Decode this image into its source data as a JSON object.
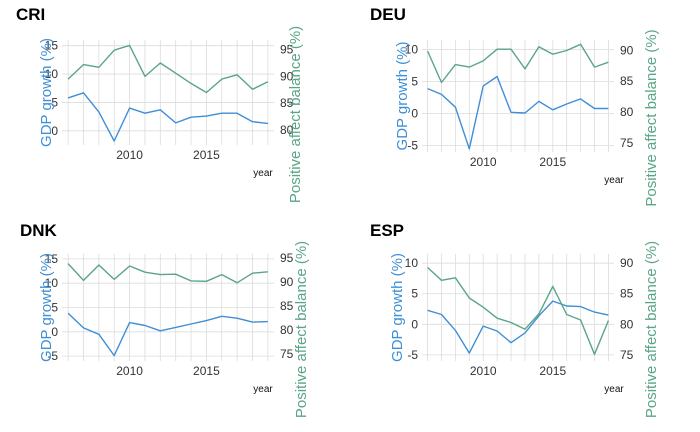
{
  "colors": {
    "left_axis": "#3f8fd6",
    "right_axis": "#5aa586",
    "grid": "#dcdcdc"
  },
  "chart_data": [
    {
      "type": "line",
      "title": "CRI",
      "xlabel": "year",
      "ylabel_left": "GDP growth (%)",
      "ylabel_right": "Positive affect balance (%)",
      "x_ticks": [
        2010,
        2015
      ],
      "xlim": [
        2005.6,
        2019.4
      ],
      "y_left_lim": [
        -2.5,
        16
      ],
      "y_left_ticks": [
        0,
        5,
        10,
        15
      ],
      "y_right_lim": [
        77.2,
        96.8
      ],
      "y_right_ticks": [
        80,
        85,
        90,
        95
      ],
      "series": [
        {
          "axis": "left",
          "color": "#3f8fd6",
          "x": [
            2006,
            2007,
            2008,
            2009,
            2010,
            2011,
            2012,
            2013,
            2014,
            2015,
            2016,
            2017,
            2018,
            2019
          ],
          "values": [
            5.8,
            6.7,
            3.3,
            -1.8,
            4.0,
            3.1,
            3.7,
            1.4,
            2.4,
            2.6,
            3.1,
            3.1,
            1.6,
            1.3
          ]
        },
        {
          "axis": "right",
          "color": "#5aa586",
          "x": [
            2006,
            2007,
            2008,
            2009,
            2010,
            2011,
            2012,
            2013,
            2014,
            2015,
            2016,
            2017,
            2018,
            2019
          ],
          "values": [
            89.5,
            92.2,
            91.7,
            94.9,
            95.8,
            90.0,
            92.5,
            90.6,
            88.7,
            87.0,
            89.5,
            90.3,
            87.6,
            89.0
          ]
        }
      ]
    },
    {
      "type": "line",
      "title": "DEU",
      "xlabel": "year",
      "ylabel_left": "GDP growth (%)",
      "ylabel_right": "Positive affect balance (%)",
      "x_ticks": [
        2010,
        2015
      ],
      "xlim": [
        2005.6,
        2019.4
      ],
      "y_left_lim": [
        -6,
        11.5
      ],
      "y_left_ticks": [
        -5,
        0,
        5,
        10
      ],
      "y_right_lim": [
        73.5,
        91.7
      ],
      "y_right_ticks": [
        75,
        80,
        85,
        90
      ],
      "series": [
        {
          "axis": "left",
          "color": "#3f8fd6",
          "x": [
            2006,
            2007,
            2008,
            2009,
            2010,
            2011,
            2012,
            2013,
            2014,
            2015,
            2016,
            2017,
            2018,
            2019
          ],
          "values": [
            3.9,
            3.0,
            1.0,
            -5.5,
            4.3,
            5.8,
            0.2,
            0.1,
            1.9,
            0.6,
            1.5,
            2.3,
            0.8,
            0.8
          ]
        },
        {
          "axis": "right",
          "color": "#5aa586",
          "x": [
            2006,
            2007,
            2008,
            2009,
            2010,
            2011,
            2012,
            2013,
            2014,
            2015,
            2016,
            2017,
            2018,
            2019
          ],
          "values": [
            89.9,
            84.8,
            87.7,
            87.3,
            88.3,
            90.2,
            90.2,
            87.0,
            90.6,
            89.4,
            90.0,
            91.0,
            87.3,
            88.1
          ]
        }
      ]
    },
    {
      "type": "line",
      "title": "DNK",
      "xlabel": "year",
      "ylabel_left": "GDP growth (%)",
      "ylabel_right": "Positive affect balance (%)",
      "x_ticks": [
        2010,
        2015
      ],
      "xlim": [
        2005.6,
        2019.4
      ],
      "y_left_lim": [
        -6,
        16
      ],
      "y_left_ticks": [
        -5,
        0,
        5,
        10,
        15
      ],
      "y_right_lim": [
        73.5,
        95.8
      ],
      "y_right_ticks": [
        75,
        80,
        85,
        90,
        95
      ],
      "series": [
        {
          "axis": "left",
          "color": "#3f8fd6",
          "x": [
            2006,
            2007,
            2008,
            2009,
            2010,
            2011,
            2012,
            2013,
            2014,
            2015,
            2016,
            2017,
            2018,
            2019
          ],
          "values": [
            3.8,
            0.8,
            -0.5,
            -4.9,
            1.9,
            1.3,
            0.2,
            0.9,
            1.6,
            2.3,
            3.2,
            2.8,
            2.0,
            2.1
          ]
        },
        {
          "axis": "right",
          "color": "#5aa586",
          "x": [
            2006,
            2007,
            2008,
            2009,
            2010,
            2011,
            2012,
            2013,
            2014,
            2015,
            2016,
            2017,
            2018,
            2019
          ],
          "values": [
            93.8,
            90.3,
            93.5,
            90.5,
            93.3,
            92.0,
            91.5,
            91.6,
            90.2,
            90.1,
            91.5,
            89.8,
            91.8,
            92.1
          ]
        }
      ]
    },
    {
      "type": "line",
      "title": "ESP",
      "xlabel": "year",
      "ylabel_left": "GDP growth (%)",
      "ylabel_right": "Positive affect balance (%)",
      "x_ticks": [
        2010,
        2015
      ],
      "xlim": [
        2005.6,
        2019.4
      ],
      "y_left_lim": [
        -6,
        11.5
      ],
      "y_left_ticks": [
        -5,
        0,
        5,
        10
      ],
      "y_right_lim": [
        74,
        91.5
      ],
      "y_right_ticks": [
        75,
        80,
        85,
        90
      ],
      "series": [
        {
          "axis": "left",
          "color": "#3f8fd6",
          "x": [
            2006,
            2007,
            2008,
            2009,
            2010,
            2011,
            2012,
            2013,
            2014,
            2015,
            2016,
            2017,
            2018,
            2019
          ],
          "values": [
            2.3,
            1.6,
            -1.0,
            -4.7,
            -0.3,
            -1.1,
            -3.0,
            -1.4,
            1.4,
            3.8,
            3.0,
            2.9,
            2.0,
            1.5
          ]
        },
        {
          "axis": "right",
          "color": "#5aa586",
          "x": [
            2006,
            2007,
            2008,
            2009,
            2010,
            2011,
            2012,
            2013,
            2014,
            2015,
            2016,
            2017,
            2018,
            2019
          ],
          "values": [
            89.3,
            87.2,
            87.6,
            84.3,
            82.8,
            81.0,
            80.3,
            79.2,
            81.7,
            86.2,
            81.6,
            80.7,
            75.1,
            80.6
          ]
        }
      ]
    }
  ]
}
